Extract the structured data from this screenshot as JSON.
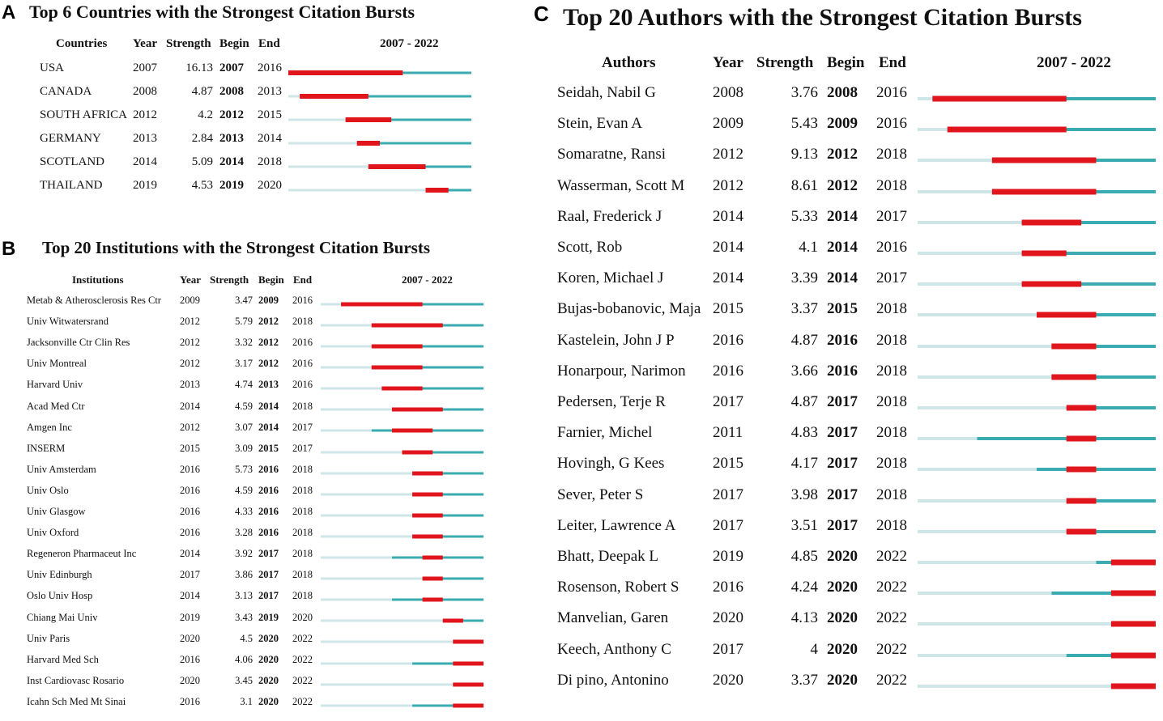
{
  "colors": {
    "burst": "#e0161c",
    "active": "#3aabb0",
    "inactive": "#cfe6e8"
  },
  "range": [
    2007,
    2022
  ],
  "panels": [
    {
      "id": "A",
      "letter": "A",
      "title": "Top 6 Countries with the Strongest Citation Bursts",
      "headers": {
        "label": "Countries",
        "year": "Year",
        "strength": "Strength",
        "begin": "Begin",
        "end": "End",
        "range": "2007 - 2022"
      },
      "rows": [
        {
          "label": "USA",
          "year": "2007",
          "strength": "16.13",
          "begin": "2007",
          "end": "2016"
        },
        {
          "label": "CANADA",
          "year": "2008",
          "strength": "4.87",
          "begin": "2008",
          "end": "2013"
        },
        {
          "label": "SOUTH AFRICA",
          "year": "2012",
          "strength": "4.2",
          "begin": "2012",
          "end": "2015"
        },
        {
          "label": "GERMANY",
          "year": "2013",
          "strength": "2.84",
          "begin": "2013",
          "end": "2014"
        },
        {
          "label": "SCOTLAND",
          "year": "2014",
          "strength": "5.09",
          "begin": "2014",
          "end": "2018"
        },
        {
          "label": "THAILAND",
          "year": "2019",
          "strength": "4.53",
          "begin": "2019",
          "end": "2020"
        }
      ]
    },
    {
      "id": "B",
      "letter": "B",
      "title": "Top 20 Institutions with the Strongest Citation Bursts",
      "headers": {
        "label": "Institutions",
        "year": "Year",
        "strength": "Strength",
        "begin": "Begin",
        "end": "End",
        "range": "2007 - 2022"
      },
      "rows": [
        {
          "label": "Metab & Atherosclerosis Res Ctr",
          "year": "2009",
          "strength": "3.47",
          "begin": "2009",
          "end": "2016"
        },
        {
          "label": "Univ Witwatersrand",
          "year": "2012",
          "strength": "5.79",
          "begin": "2012",
          "end": "2018"
        },
        {
          "label": "Jacksonville Ctr Clin Res",
          "year": "2012",
          "strength": "3.32",
          "begin": "2012",
          "end": "2016"
        },
        {
          "label": "Univ Montreal",
          "year": "2012",
          "strength": "3.17",
          "begin": "2012",
          "end": "2016"
        },
        {
          "label": "Harvard Univ",
          "year": "2013",
          "strength": "4.74",
          "begin": "2013",
          "end": "2016"
        },
        {
          "label": "Acad Med Ctr",
          "year": "2014",
          "strength": "4.59",
          "begin": "2014",
          "end": "2018"
        },
        {
          "label": "Amgen Inc",
          "year": "2012",
          "strength": "3.07",
          "begin": "2014",
          "end": "2017"
        },
        {
          "label": "INSERM",
          "year": "2015",
          "strength": "3.09",
          "begin": "2015",
          "end": "2017"
        },
        {
          "label": "Univ Amsterdam",
          "year": "2016",
          "strength": "5.73",
          "begin": "2016",
          "end": "2018"
        },
        {
          "label": "Univ Oslo",
          "year": "2016",
          "strength": "4.59",
          "begin": "2016",
          "end": "2018"
        },
        {
          "label": "Univ Glasgow",
          "year": "2016",
          "strength": "4.33",
          "begin": "2016",
          "end": "2018"
        },
        {
          "label": "Univ Oxford",
          "year": "2016",
          "strength": "3.28",
          "begin": "2016",
          "end": "2018"
        },
        {
          "label": "Regeneron Pharmaceut Inc",
          "year": "2014",
          "strength": "3.92",
          "begin": "2017",
          "end": "2018"
        },
        {
          "label": "Univ Edinburgh",
          "year": "2017",
          "strength": "3.86",
          "begin": "2017",
          "end": "2018"
        },
        {
          "label": "Oslo Univ Hosp",
          "year": "2014",
          "strength": "3.13",
          "begin": "2017",
          "end": "2018"
        },
        {
          "label": "Chiang Mai Univ",
          "year": "2019",
          "strength": "3.43",
          "begin": "2019",
          "end": "2020"
        },
        {
          "label": "Univ Paris",
          "year": "2020",
          "strength": "4.5",
          "begin": "2020",
          "end": "2022"
        },
        {
          "label": "Harvard Med Sch",
          "year": "2016",
          "strength": "4.06",
          "begin": "2020",
          "end": "2022"
        },
        {
          "label": "Inst Cardiovasc Rosario",
          "year": "2020",
          "strength": "3.45",
          "begin": "2020",
          "end": "2022"
        },
        {
          "label": "Icahn Sch Med Mt Sinai",
          "year": "2016",
          "strength": "3.1",
          "begin": "2020",
          "end": "2022"
        }
      ]
    },
    {
      "id": "C",
      "letter": "C",
      "title": "Top 20 Authors with the Strongest Citation Bursts",
      "headers": {
        "label": "Authors",
        "year": "Year",
        "strength": "Strength",
        "begin": "Begin",
        "end": "End",
        "range": "2007 - 2022"
      },
      "rows": [
        {
          "label": "Seidah, Nabil G",
          "year": "2008",
          "strength": "3.76",
          "begin": "2008",
          "end": "2016"
        },
        {
          "label": "Stein, Evan A",
          "year": "2009",
          "strength": "5.43",
          "begin": "2009",
          "end": "2016"
        },
        {
          "label": "Somaratne, Ransi",
          "year": "2012",
          "strength": "9.13",
          "begin": "2012",
          "end": "2018"
        },
        {
          "label": "Wasserman, Scott M",
          "year": "2012",
          "strength": "8.61",
          "begin": "2012",
          "end": "2018"
        },
        {
          "label": "Raal, Frederick J",
          "year": "2014",
          "strength": "5.33",
          "begin": "2014",
          "end": "2017"
        },
        {
          "label": "Scott, Rob",
          "year": "2014",
          "strength": "4.1",
          "begin": "2014",
          "end": "2016"
        },
        {
          "label": "Koren, Michael J",
          "year": "2014",
          "strength": "3.39",
          "begin": "2014",
          "end": "2017"
        },
        {
          "label": "Bujas-bobanovic, Maja",
          "year": "2015",
          "strength": "3.37",
          "begin": "2015",
          "end": "2018"
        },
        {
          "label": "Kastelein, John J P",
          "year": "2016",
          "strength": "4.87",
          "begin": "2016",
          "end": "2018"
        },
        {
          "label": "Honarpour, Narimon",
          "year": "2016",
          "strength": "3.66",
          "begin": "2016",
          "end": "2018"
        },
        {
          "label": "Pedersen, Terje R",
          "year": "2017",
          "strength": "4.87",
          "begin": "2017",
          "end": "2018"
        },
        {
          "label": "Farnier, Michel",
          "year": "2011",
          "strength": "4.83",
          "begin": "2017",
          "end": "2018"
        },
        {
          "label": "Hovingh, G Kees",
          "year": "2015",
          "strength": "4.17",
          "begin": "2017",
          "end": "2018"
        },
        {
          "label": "Sever, Peter S",
          "year": "2017",
          "strength": "3.98",
          "begin": "2017",
          "end": "2018"
        },
        {
          "label": "Leiter, Lawrence A",
          "year": "2017",
          "strength": "3.51",
          "begin": "2017",
          "end": "2018"
        },
        {
          "label": "Bhatt, Deepak L",
          "year": "2019",
          "strength": "4.85",
          "begin": "2020",
          "end": "2022"
        },
        {
          "label": "Rosenson, Robert S",
          "year": "2016",
          "strength": "4.24",
          "begin": "2020",
          "end": "2022"
        },
        {
          "label": "Manvelian, Garen",
          "year": "2020",
          "strength": "4.13",
          "begin": "2020",
          "end": "2022"
        },
        {
          "label": "Keech, Anthony C",
          "year": "2017",
          "strength": "4",
          "begin": "2020",
          "end": "2022"
        },
        {
          "label": "Di pino, Antonino",
          "year": "2020",
          "strength": "3.37",
          "begin": "2020",
          "end": "2022"
        }
      ]
    }
  ],
  "chart_data": [
    {
      "type": "table",
      "title": "Top 6 Countries with the Strongest Citation Bursts",
      "columns": [
        "Countries",
        "Year",
        "Strength",
        "Begin",
        "End",
        "2007 - 2022"
      ],
      "range": [
        2007,
        2022
      ],
      "rows": [
        [
          "USA",
          2007,
          16.13,
          2007,
          2016
        ],
        [
          "CANADA",
          2008,
          4.87,
          2008,
          2013
        ],
        [
          "SOUTH AFRICA",
          2012,
          4.2,
          2012,
          2015
        ],
        [
          "GERMANY",
          2013,
          2.84,
          2013,
          2014
        ],
        [
          "SCOTLAND",
          2014,
          5.09,
          2014,
          2018
        ],
        [
          "THAILAND",
          2019,
          4.53,
          2019,
          2020
        ]
      ]
    },
    {
      "type": "table",
      "title": "Top 20 Institutions with the Strongest Citation Bursts",
      "columns": [
        "Institutions",
        "Year",
        "Strength",
        "Begin",
        "End",
        "2007 - 2022"
      ],
      "range": [
        2007,
        2022
      ],
      "rows": [
        [
          "Metab & Atherosclerosis Res Ctr",
          2009,
          3.47,
          2009,
          2016
        ],
        [
          "Univ Witwatersrand",
          2012,
          5.79,
          2012,
          2018
        ],
        [
          "Jacksonville Ctr Clin Res",
          2012,
          3.32,
          2012,
          2016
        ],
        [
          "Univ Montreal",
          2012,
          3.17,
          2012,
          2016
        ],
        [
          "Harvard Univ",
          2013,
          4.74,
          2013,
          2016
        ],
        [
          "Acad Med Ctr",
          2014,
          4.59,
          2014,
          2018
        ],
        [
          "Amgen Inc",
          2012,
          3.07,
          2014,
          2017
        ],
        [
          "INSERM",
          2015,
          3.09,
          2015,
          2017
        ],
        [
          "Univ Amsterdam",
          2016,
          5.73,
          2016,
          2018
        ],
        [
          "Univ Oslo",
          2016,
          4.59,
          2016,
          2018
        ],
        [
          "Univ Glasgow",
          2016,
          4.33,
          2016,
          2018
        ],
        [
          "Univ Oxford",
          2016,
          3.28,
          2016,
          2018
        ],
        [
          "Regeneron Pharmaceut Inc",
          2014,
          3.92,
          2017,
          2018
        ],
        [
          "Univ Edinburgh",
          2017,
          3.86,
          2017,
          2018
        ],
        [
          "Oslo Univ Hosp",
          2014,
          3.13,
          2017,
          2018
        ],
        [
          "Chiang Mai Univ",
          2019,
          3.43,
          2019,
          2020
        ],
        [
          "Univ Paris",
          2020,
          4.5,
          2020,
          2022
        ],
        [
          "Harvard Med Sch",
          2016,
          4.06,
          2020,
          2022
        ],
        [
          "Inst Cardiovasc Rosario",
          2020,
          3.45,
          2020,
          2022
        ],
        [
          "Icahn Sch Med Mt Sinai",
          2016,
          3.1,
          2020,
          2022
        ]
      ]
    },
    {
      "type": "table",
      "title": "Top 20 Authors with the Strongest Citation Bursts",
      "columns": [
        "Authors",
        "Year",
        "Strength",
        "Begin",
        "End",
        "2007 - 2022"
      ],
      "range": [
        2007,
        2022
      ],
      "rows": [
        [
          "Seidah, Nabil G",
          2008,
          3.76,
          2008,
          2016
        ],
        [
          "Stein, Evan A",
          2009,
          5.43,
          2009,
          2016
        ],
        [
          "Somaratne, Ransi",
          2012,
          9.13,
          2012,
          2018
        ],
        [
          "Wasserman, Scott M",
          2012,
          8.61,
          2012,
          2018
        ],
        [
          "Raal, Frederick J",
          2014,
          5.33,
          2014,
          2017
        ],
        [
          "Scott, Rob",
          2014,
          4.1,
          2014,
          2016
        ],
        [
          "Koren, Michael J",
          2014,
          3.39,
          2014,
          2017
        ],
        [
          "Bujas-bobanovic, Maja",
          2015,
          3.37,
          2015,
          2018
        ],
        [
          "Kastelein, John J P",
          2016,
          4.87,
          2016,
          2018
        ],
        [
          "Honarpour, Narimon",
          2016,
          3.66,
          2016,
          2018
        ],
        [
          "Pedersen, Terje R",
          2017,
          4.87,
          2017,
          2018
        ],
        [
          "Farnier, Michel",
          2011,
          4.83,
          2017,
          2018
        ],
        [
          "Hovingh, G Kees",
          2015,
          4.17,
          2017,
          2018
        ],
        [
          "Sever, Peter S",
          2017,
          3.98,
          2017,
          2018
        ],
        [
          "Leiter, Lawrence A",
          2017,
          3.51,
          2017,
          2018
        ],
        [
          "Bhatt, Deepak L",
          2019,
          4.85,
          2020,
          2022
        ],
        [
          "Rosenson, Robert S",
          2016,
          4.24,
          2020,
          2022
        ],
        [
          "Manvelian, Garen",
          2020,
          4.13,
          2020,
          2022
        ],
        [
          "Keech, Anthony C",
          2017,
          4,
          2020,
          2022
        ],
        [
          "Di pino, Antonino",
          2020,
          3.37,
          2020,
          2022
        ]
      ]
    }
  ]
}
